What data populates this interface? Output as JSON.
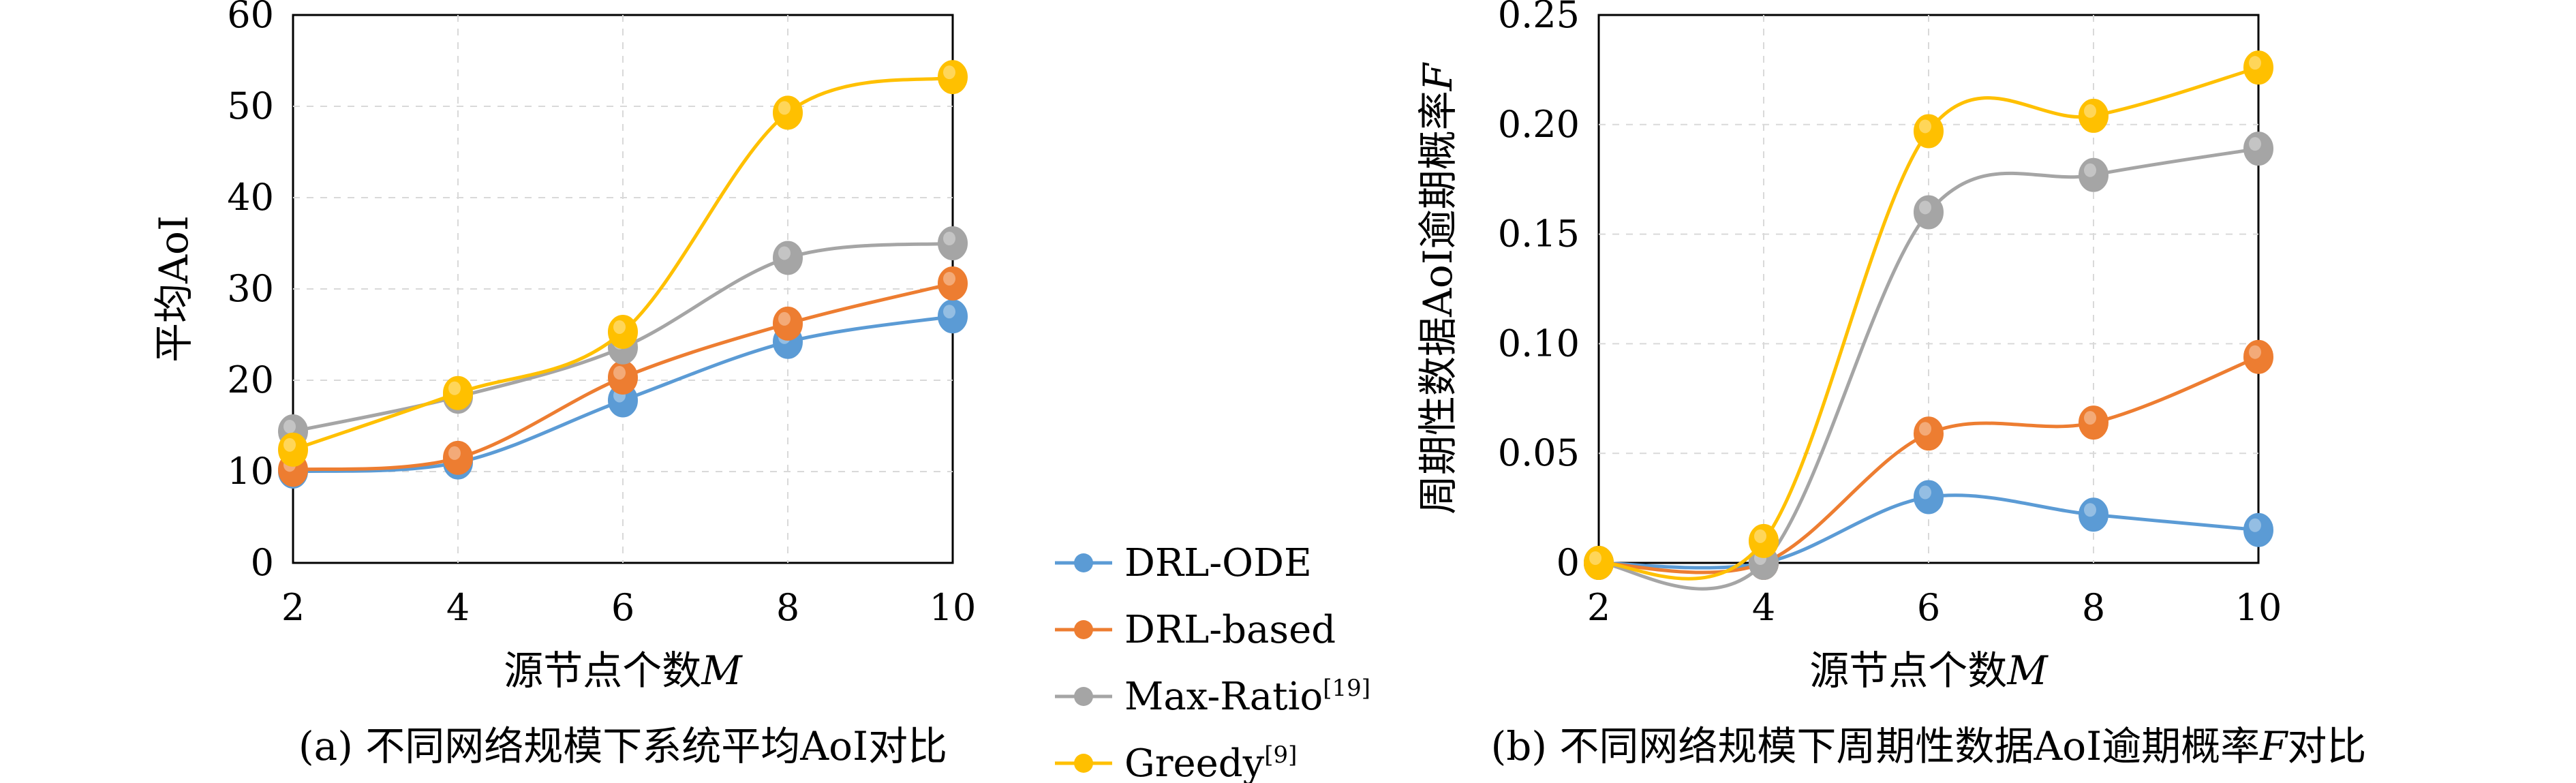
{
  "colors": {
    "DRL-ODE": "#5b9bd5",
    "DRL-based": "#ed7d31",
    "Max-Ratio": "#a5a5a5",
    "Greedy": "#ffc000"
  },
  "legend": [
    {
      "key": "DRL-ODE",
      "label": "DRL-ODE",
      "sup": ""
    },
    {
      "key": "DRL-based",
      "label": "DRL-based",
      "sup": ""
    },
    {
      "key": "Max-Ratio",
      "label": "Max-Ratio",
      "sup": "[19]"
    },
    {
      "key": "Greedy",
      "label": "Greedy",
      "sup": "[9]"
    }
  ],
  "chart_data": [
    {
      "type": "line",
      "caption": "(a) 不同网络规模下系统平均AoI对比",
      "xlabel": "源节点个数",
      "xlabel_var": "M",
      "ylabel": "平均AoI",
      "ylabel_var": "",
      "x": [
        2,
        4,
        6,
        8,
        10
      ],
      "xticks": [
        "2",
        "4",
        "6",
        "8",
        "10"
      ],
      "ylim": [
        0,
        60
      ],
      "yticks": [
        "0",
        "10",
        "20",
        "30",
        "40",
        "50",
        "60"
      ],
      "grid": true,
      "series": [
        {
          "name": "DRL-ODE",
          "values": [
            10.0,
            11.0,
            17.8,
            24.2,
            27.0
          ]
        },
        {
          "name": "DRL-based",
          "values": [
            10.2,
            11.5,
            20.3,
            26.2,
            30.6
          ]
        },
        {
          "name": "Max-Ratio",
          "values": [
            14.4,
            18.2,
            23.6,
            33.4,
            35.0
          ]
        },
        {
          "name": "Greedy",
          "values": [
            12.4,
            18.6,
            25.3,
            49.3,
            53.2
          ]
        }
      ]
    },
    {
      "type": "line",
      "caption": "(b) 不同网络规模下周期性数据AoI逾期概率",
      "caption_var": "F",
      "caption_tail": "对比",
      "xlabel": "源节点个数",
      "xlabel_var": "M",
      "ylabel": "周期性数据AoI逾期概率",
      "ylabel_var": "F",
      "x": [
        2,
        4,
        6,
        8,
        10
      ],
      "xticks": [
        "2",
        "4",
        "6",
        "8",
        "10"
      ],
      "ylim": [
        0,
        0.25
      ],
      "yticks": [
        "0",
        "0.05",
        "0.10",
        "0.15",
        "0.20",
        "0.25"
      ],
      "grid": true,
      "series": [
        {
          "name": "DRL-ODE",
          "values": [
            0.0,
            0.0,
            0.03,
            0.022,
            0.015
          ]
        },
        {
          "name": "DRL-based",
          "values": [
            0.0,
            0.0,
            0.059,
            0.064,
            0.094
          ]
        },
        {
          "name": "Max-Ratio",
          "values": [
            0.0,
            0.0,
            0.16,
            0.177,
            0.189
          ]
        },
        {
          "name": "Greedy",
          "values": [
            0.0,
            0.01,
            0.197,
            0.204,
            0.226
          ]
        }
      ]
    }
  ]
}
